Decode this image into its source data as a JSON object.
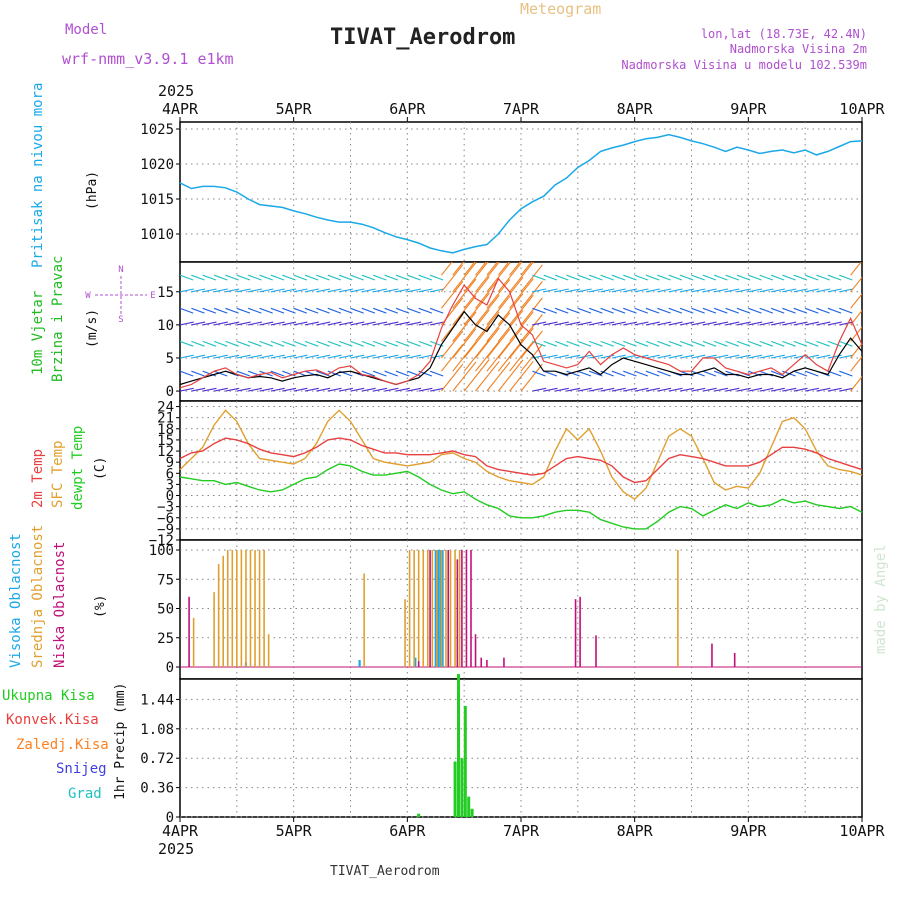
{
  "header": {
    "model_label": "Model",
    "model_name": "wrf-nmm_v3.9.1 e1km",
    "meteogram": "Meteogram",
    "station": "TIVAT_Aerodrom",
    "lonlat": "lon,lat (18.73E, 42.4N)",
    "elevation": "Nadmorska Visina 2m",
    "model_elevation": "Nadmorska Visina u modelu 102.539m",
    "footer_station": "TIVAT_Aerodrom",
    "credit": "made by Angel"
  },
  "colors": {
    "pressure": "#1aa8e8",
    "wind_label": "#22bb22",
    "temp2m": "#e84040",
    "sfc_temp": "#e0a030",
    "dewpoint": "#22cc22",
    "high_cloud": "#1aa8e8",
    "mid_cloud": "#e0a030",
    "low_cloud": "#c0107a",
    "precip_total": "#22cc22",
    "conv": "#e84040",
    "frozen": "#ff8020",
    "snow": "#4040e0",
    "hail": "#20c0c0",
    "model_text": "#b050d0"
  },
  "chart_data": [
    {
      "type": "line",
      "name": "pressure",
      "ylabel_left": "Pritisak na nivou mora",
      "unit": "(hPa)",
      "yticks": [
        1010,
        1015,
        1020,
        1025
      ],
      "ylim": [
        1006,
        1026
      ],
      "x_days": [
        0,
        0.1,
        0.2,
        0.3,
        0.4,
        0.5,
        0.6,
        0.7,
        0.8,
        0.9,
        1.0,
        1.1,
        1.2,
        1.3,
        1.4,
        1.5,
        1.6,
        1.7,
        1.8,
        1.9,
        2.0,
        2.1,
        2.2,
        2.3,
        2.4,
        2.5,
        2.6,
        2.7,
        2.8,
        2.9,
        3.0,
        3.1,
        3.2,
        3.3,
        3.4,
        3.5,
        3.6,
        3.7,
        3.8,
        3.9,
        4.0,
        4.1,
        4.2,
        4.3,
        4.4,
        4.5,
        4.6,
        4.7,
        4.8,
        4.9,
        5.0,
        5.1,
        5.2,
        5.3,
        5.4,
        5.5,
        5.6,
        5.7,
        5.8,
        5.9,
        6.0
      ],
      "values": [
        1017.3,
        1016.5,
        1016.8,
        1016.8,
        1016.6,
        1016.0,
        1015.0,
        1014.2,
        1014.0,
        1013.8,
        1013.3,
        1012.9,
        1012.4,
        1012.0,
        1011.7,
        1011.7,
        1011.4,
        1010.9,
        1010.2,
        1009.6,
        1009.2,
        1008.7,
        1008.0,
        1007.6,
        1007.3,
        1007.8,
        1008.2,
        1008.5,
        1010.0,
        1012.0,
        1013.6,
        1014.6,
        1015.4,
        1017.0,
        1018.0,
        1019.5,
        1020.5,
        1021.8,
        1022.3,
        1022.7,
        1023.2,
        1023.6,
        1023.8,
        1024.2,
        1023.8,
        1023.3,
        1022.9,
        1022.4,
        1021.8,
        1022.4,
        1022.0,
        1021.5,
        1021.8,
        1022.0,
        1021.6,
        1022.0,
        1021.3,
        1021.8,
        1022.5,
        1023.2,
        1023.3
      ]
    },
    {
      "type": "line",
      "name": "wind",
      "ylabel_left": [
        "10m Vjetar",
        "Brzina i Pravac"
      ],
      "unit": "(m/s)",
      "compass": [
        "N",
        "E",
        "W",
        "S"
      ],
      "yticks": [
        0,
        5,
        10,
        15
      ],
      "ylim": [
        -1.5,
        19.5
      ],
      "x_days": [
        0,
        0.1,
        0.2,
        0.3,
        0.4,
        0.5,
        0.6,
        0.7,
        0.8,
        0.9,
        1.0,
        1.1,
        1.2,
        1.3,
        1.4,
        1.5,
        1.6,
        1.7,
        1.8,
        1.9,
        2.0,
        2.1,
        2.2,
        2.3,
        2.4,
        2.5,
        2.6,
        2.7,
        2.8,
        2.9,
        3.0,
        3.1,
        3.2,
        3.3,
        3.4,
        3.5,
        3.6,
        3.7,
        3.8,
        3.9,
        4.0,
        4.1,
        4.2,
        4.3,
        4.4,
        4.5,
        4.6,
        4.7,
        4.8,
        4.9,
        5.0,
        5.1,
        5.2,
        5.3,
        5.4,
        5.5,
        5.6,
        5.7,
        5.8,
        5.9,
        6.0
      ],
      "speed": [
        1.0,
        1.5,
        2.0,
        2.5,
        3.0,
        2.5,
        2.0,
        2.2,
        2.0,
        1.5,
        2.0,
        2.3,
        2.5,
        2.0,
        2.8,
        3.0,
        2.5,
        2.0,
        1.5,
        1.0,
        1.5,
        2.0,
        3.5,
        7.0,
        9.5,
        12.0,
        10.0,
        9.0,
        11.5,
        10.0,
        7.0,
        5.5,
        3.0,
        3.0,
        2.5,
        3.0,
        3.5,
        2.5,
        4.0,
        5.0,
        4.5,
        4.0,
        3.5,
        3.0,
        2.5,
        2.5,
        3.0,
        3.5,
        2.5,
        2.5,
        2.0,
        2.5,
        2.5,
        2.0,
        3.0,
        3.5,
        3.0,
        2.5,
        5.5,
        8.0,
        6.0
      ],
      "gust": [
        0.5,
        1.0,
        2.0,
        3.0,
        3.5,
        2.5,
        2.0,
        2.5,
        2.8,
        2.0,
        2.5,
        3.0,
        3.2,
        2.5,
        3.5,
        3.8,
        2.5,
        2.2,
        1.5,
        1.0,
        1.5,
        2.5,
        4.5,
        9.5,
        13.0,
        16.0,
        14.0,
        13.0,
        17.0,
        15.0,
        10.0,
        8.5,
        4.5,
        4.0,
        3.5,
        4.0,
        6.0,
        4.0,
        5.5,
        6.5,
        5.5,
        5.0,
        4.5,
        4.0,
        3.0,
        3.0,
        5.0,
        5.0,
        3.5,
        3.0,
        2.5,
        3.0,
        3.5,
        2.5,
        4.0,
        5.5,
        4.0,
        3.0,
        7.5,
        11.0,
        7.0
      ]
    },
    {
      "type": "line",
      "name": "temperature",
      "ylabel_left": [
        "2m Temp",
        "SFC Temp",
        "dewpt Temp"
      ],
      "unit": "(C)",
      "yticks": [
        -12,
        -9,
        -6,
        -3,
        0,
        3,
        6,
        9,
        12,
        15,
        18,
        21,
        24
      ],
      "ylim": [
        -12,
        25.5
      ],
      "x_days": [
        0,
        0.1,
        0.2,
        0.3,
        0.4,
        0.5,
        0.6,
        0.7,
        0.8,
        0.9,
        1.0,
        1.1,
        1.2,
        1.3,
        1.4,
        1.5,
        1.6,
        1.7,
        1.8,
        1.9,
        2.0,
        2.1,
        2.2,
        2.3,
        2.4,
        2.5,
        2.6,
        2.7,
        2.8,
        2.9,
        3.0,
        3.1,
        3.2,
        3.3,
        3.4,
        3.5,
        3.6,
        3.7,
        3.8,
        3.9,
        4.0,
        4.1,
        4.2,
        4.3,
        4.4,
        4.5,
        4.6,
        4.7,
        4.8,
        4.9,
        5.0,
        5.1,
        5.2,
        5.3,
        5.4,
        5.5,
        5.6,
        5.7,
        5.8,
        5.9,
        6.0
      ],
      "temp2m": [
        10.0,
        11.5,
        12.0,
        14.0,
        15.5,
        15.0,
        14.0,
        12.5,
        11.5,
        11.0,
        10.5,
        11.5,
        13.0,
        15.0,
        15.5,
        15.0,
        13.5,
        12.5,
        11.5,
        11.5,
        11.0,
        11.0,
        11.0,
        11.5,
        12.0,
        11.0,
        10.5,
        8.0,
        7.0,
        6.5,
        6.0,
        5.5,
        6.0,
        8.0,
        10.0,
        10.5,
        10.0,
        9.5,
        8.0,
        5.0,
        3.5,
        4.0,
        7.0,
        10.0,
        11.0,
        10.5,
        10.0,
        9.0,
        8.0,
        8.0,
        8.0,
        9.0,
        11.0,
        13.0,
        13.0,
        12.5,
        11.5,
        10.0,
        9.0,
        8.0,
        7.0
      ],
      "sfc_temp": [
        7.0,
        10.0,
        13.0,
        19.0,
        23.0,
        20.0,
        14.0,
        10.0,
        9.5,
        9.0,
        8.5,
        10.0,
        14.0,
        20.0,
        23.0,
        20.0,
        15.0,
        10.0,
        9.0,
        8.5,
        8.0,
        8.5,
        9.0,
        11.0,
        11.5,
        10.0,
        9.0,
        6.5,
        5.0,
        4.0,
        3.5,
        3.0,
        5.0,
        12.0,
        18.0,
        15.0,
        18.0,
        12.0,
        5.0,
        1.0,
        -1.0,
        2.0,
        9.0,
        16.0,
        18.0,
        16.0,
        10.0,
        3.5,
        1.5,
        2.5,
        2.0,
        6.0,
        13.0,
        20.0,
        21.0,
        18.0,
        12.0,
        8.0,
        7.0,
        6.5,
        5.5
      ],
      "dewpoint": [
        5.0,
        4.5,
        4.0,
        4.0,
        3.0,
        3.5,
        2.5,
        1.5,
        1.0,
        1.5,
        3.0,
        4.5,
        5.0,
        7.0,
        8.5,
        8.0,
        6.5,
        5.5,
        5.5,
        6.0,
        6.5,
        5.0,
        3.0,
        1.5,
        0.5,
        1.0,
        -1.0,
        -2.5,
        -3.5,
        -5.5,
        -6.0,
        -6.0,
        -5.5,
        -4.5,
        -4.0,
        -4.0,
        -4.5,
        -6.5,
        -7.5,
        -8.5,
        -9.0,
        -9.0,
        -7.0,
        -4.5,
        -3.0,
        -3.5,
        -5.5,
        -4.0,
        -2.5,
        -3.5,
        -2.0,
        -3.0,
        -2.5,
        -1.0,
        -2.0,
        -1.5,
        -2.5,
        -3.0,
        -3.5,
        -3.0,
        -4.5
      ]
    },
    {
      "type": "bar",
      "name": "clouds",
      "ylabel_left": [
        "Visoka Oblacnost",
        "Srednja Oblacnost",
        "Niska Oblacnost"
      ],
      "unit": "(%)",
      "yticks": [
        0,
        25,
        50,
        75,
        100
      ],
      "ylim": [
        0,
        100
      ],
      "series": [
        {
          "name": "Visoka Oblacnost",
          "x_days": [
            0.58,
            1.58,
            2.07,
            2.25,
            2.27,
            2.29,
            2.31
          ],
          "values": [
            4,
            6,
            8,
            100,
            100,
            100,
            100
          ]
        },
        {
          "name": "Srednja Oblacnost",
          "x_days": [
            0.12,
            0.3,
            0.34,
            0.38,
            0.42,
            0.46,
            0.5,
            0.54,
            0.58,
            0.62,
            0.66,
            0.7,
            0.74,
            0.78,
            1.62,
            1.98,
            2.02,
            2.06,
            2.1,
            2.14,
            2.18,
            2.22,
            2.26,
            2.3,
            2.34,
            2.38,
            2.42,
            2.46,
            4.38
          ],
          "values": [
            42,
            64,
            88,
            95,
            100,
            100,
            100,
            100,
            100,
            100,
            100,
            100,
            100,
            28,
            80,
            58,
            100,
            100,
            100,
            100,
            100,
            100,
            100,
            100,
            100,
            100,
            100,
            100,
            100
          ]
        },
        {
          "name": "Niska Oblacnost",
          "x_days": [
            0.08,
            2.1,
            2.2,
            2.36,
            2.44,
            2.48,
            2.52,
            2.56,
            2.6,
            2.65,
            2.7,
            2.85,
            3.48,
            3.52,
            3.66,
            4.68,
            4.88
          ],
          "values": [
            60,
            5,
            100,
            100,
            92,
            100,
            100,
            100,
            28,
            8,
            6,
            8,
            58,
            60,
            27,
            20,
            12
          ]
        }
      ]
    },
    {
      "type": "bar",
      "name": "precipitation",
      "ylabel_left": [
        "Ukupna Kisa",
        "Konvek.Kisa",
        "Zaledj.Kisa",
        "Snijeg",
        "Grad"
      ],
      "unit": "1hr Precip (mm)",
      "yticks": [
        0,
        0.36,
        0.72,
        1.08,
        1.44
      ],
      "ylim": [
        0,
        1.69
      ],
      "x_days": [
        2.1,
        2.42,
        2.45,
        2.48,
        2.51,
        2.54,
        2.57
      ],
      "values": [
        0.04,
        0.68,
        1.75,
        0.72,
        1.36,
        0.25,
        0.1
      ]
    }
  ],
  "xaxis": {
    "year": "2025",
    "top_labels": [
      "4APR",
      "5APR",
      "6APR",
      "7APR",
      "8APR",
      "9APR",
      "10APR"
    ],
    "bottom_labels": [
      "4APR",
      "5APR",
      "6APR",
      "7APR",
      "8APR",
      "9APR",
      "10APR"
    ]
  }
}
